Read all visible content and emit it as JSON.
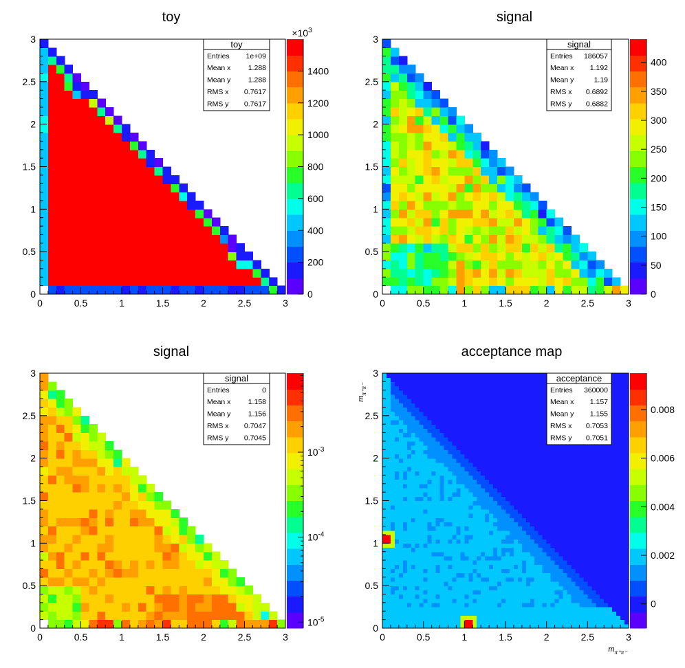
{
  "chart_data": [
    {
      "type": "heatmap",
      "id": "toy",
      "title": "toy",
      "xlabel": "",
      "ylabel": "",
      "xlim": [
        0,
        3
      ],
      "ylim": [
        0,
        3
      ],
      "bins": 30,
      "xticks": [
        "0",
        "0.5",
        "1",
        "1.5",
        "2",
        "2.5",
        "3"
      ],
      "yticks": [
        "0",
        "0.5",
        "1",
        "1.5",
        "2",
        "2.5",
        "3"
      ],
      "palette_scale": "linear",
      "zlim": [
        0,
        1600
      ],
      "z_exponent_label": "×10",
      "z_exponent_power": "3",
      "zticks": [
        "0",
        "200",
        "400",
        "600",
        "800",
        "1000",
        "1200",
        "1400"
      ],
      "zticks_values": [
        0,
        200,
        400,
        600,
        800,
        1000,
        1200,
        1400
      ],
      "interior_value": 1600,
      "stats": {
        "name": "toy",
        "rows": [
          {
            "label": "Entries",
            "value": "1e+09"
          },
          {
            "label": "Mean x",
            "value": "1.288"
          },
          {
            "label": "Mean y",
            "value": "1.288"
          },
          {
            "label": "RMS x",
            "value": "0.7617"
          },
          {
            "label": "RMS y",
            "value": "0.7617"
          }
        ]
      }
    },
    {
      "type": "heatmap",
      "id": "signal-linear",
      "title": "signal",
      "xlabel": "",
      "ylabel": "",
      "xlim": [
        0,
        3
      ],
      "ylim": [
        0,
        3
      ],
      "bins": 30,
      "xticks": [
        "0",
        "0.5",
        "1",
        "1.5",
        "2",
        "2.5",
        "3"
      ],
      "yticks": [
        "0",
        "0.5",
        "1",
        "1.5",
        "2",
        "2.5",
        "3"
      ],
      "palette_scale": "linear",
      "zlim": [
        0,
        440
      ],
      "zticks": [
        "0",
        "50",
        "100",
        "150",
        "200",
        "250",
        "300",
        "350",
        "400"
      ],
      "zticks_values": [
        0,
        50,
        100,
        150,
        200,
        250,
        300,
        350,
        400
      ],
      "interior_value": 300,
      "stats": {
        "name": "signal",
        "rows": [
          {
            "label": "Entries",
            "value": "186057"
          },
          {
            "label": "Mean x",
            "value": "1.192"
          },
          {
            "label": "Mean y",
            "value": "1.19"
          },
          {
            "label": "RMS x",
            "value": "0.6892"
          },
          {
            "label": "RMS y",
            "value": "0.6882"
          }
        ]
      }
    },
    {
      "type": "heatmap",
      "id": "signal-log",
      "title": "signal",
      "xlabel": "",
      "ylabel": "",
      "xlim": [
        0,
        3
      ],
      "ylim": [
        0,
        3
      ],
      "bins": 30,
      "xticks": [
        "0",
        "0.5",
        "1",
        "1.5",
        "2",
        "2.5",
        "3"
      ],
      "yticks": [
        "0",
        "0.5",
        "1",
        "1.5",
        "2",
        "2.5",
        "3"
      ],
      "palette_scale": "log",
      "zlim": [
        8.5e-06,
        0.0085
      ],
      "zticks_labels": [
        {
          "base": "10",
          "exp": "-5"
        },
        {
          "base": "10",
          "exp": "-4"
        },
        {
          "base": "10",
          "exp": "-3"
        }
      ],
      "zticks_values": [
        1e-05,
        0.0001,
        0.001
      ],
      "interior_value": 0.0012,
      "stats": {
        "name": "signal",
        "rows": [
          {
            "label": "Entries",
            "value": "0"
          },
          {
            "label": "Mean x",
            "value": "1.158"
          },
          {
            "label": "Mean y",
            "value": "1.156"
          },
          {
            "label": "RMS x",
            "value": "0.7047"
          },
          {
            "label": "RMS y",
            "value": "0.7045"
          }
        ]
      }
    },
    {
      "type": "heatmap",
      "id": "acceptance",
      "title": "acceptance map",
      "xlabel": "m",
      "xlabel_sub": "π⁺π⁻",
      "ylabel": "m",
      "ylabel_sub": "π⁺π⁻",
      "xlim": [
        0,
        3
      ],
      "ylim": [
        0,
        3
      ],
      "bins": 60,
      "xticks": [
        "0",
        "0.5",
        "1",
        "1.5",
        "2",
        "2.5",
        "3"
      ],
      "yticks": [
        "0",
        "0.5",
        "1",
        "1.5",
        "2",
        "2.5",
        "3"
      ],
      "palette_scale": "linear",
      "zlim": [
        -0.001,
        0.0095
      ],
      "zticks": [
        "0",
        "0.002",
        "0.004",
        "0.006",
        "0.008"
      ],
      "zticks_values": [
        0,
        0.002,
        0.004,
        0.006,
        0.008
      ],
      "outside_value": 0.0001,
      "interior_value": 0.0016,
      "hotspots": [
        {
          "x": 0.05,
          "y": 1.05,
          "value": 0.0093
        },
        {
          "x": 1.05,
          "y": 0.05,
          "value": 0.0093
        }
      ],
      "stats": {
        "name": "acceptance",
        "rows": [
          {
            "label": "Entries",
            "value": "360000"
          },
          {
            "label": "Mean x",
            "value": "1.157"
          },
          {
            "label": "Mean y",
            "value": "1.155"
          },
          {
            "label": "RMS x",
            "value": "0.7053"
          },
          {
            "label": "RMS y",
            "value": "0.7051"
          }
        ]
      }
    }
  ],
  "palette_colors": [
    "#5a00ff",
    "#1a1aff",
    "#0050ff",
    "#0090ff",
    "#00c8ff",
    "#00ffe8",
    "#00ff90",
    "#28ff28",
    "#88ff00",
    "#c8ff00",
    "#f0f000",
    "#ffd000",
    "#ffa000",
    "#ff7000",
    "#ff3000",
    "#ff0000"
  ]
}
